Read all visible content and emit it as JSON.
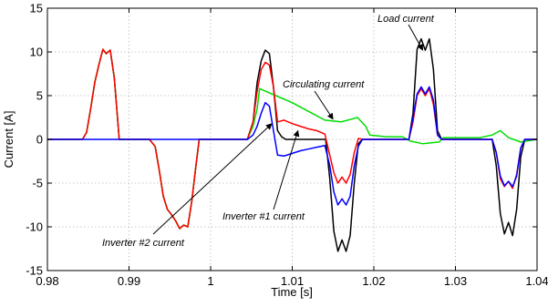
{
  "chart_data": {
    "type": "line",
    "title": "",
    "xlabel": "Time [s]",
    "ylabel": "Current [A]",
    "xlim": [
      0.98,
      1.04
    ],
    "ylim": [
      -15,
      15
    ],
    "grid": true,
    "x_ticks": [
      0.98,
      0.99,
      1.0,
      1.01,
      1.02,
      1.03,
      1.04
    ],
    "x_tick_labels": [
      "0.98",
      "0.99",
      "1",
      "1.01",
      "1.02",
      "1.03",
      "1.04"
    ],
    "y_ticks": [
      -15,
      -10,
      -5,
      0,
      5,
      10,
      15
    ],
    "y_tick_labels": [
      "-15",
      "-10",
      "-5",
      "0",
      "5",
      "10",
      "15"
    ],
    "series": [
      {
        "name": "Load current",
        "color": "#000000",
        "x": [
          0.98,
          0.9843,
          0.9848,
          0.9853,
          0.9858,
          0.9863,
          0.9868,
          0.9872,
          0.9877,
          0.9882,
          0.9888,
          0.9892,
          0.9925,
          0.9932,
          0.9937,
          0.9942,
          0.9947,
          0.9952,
          0.9957,
          0.9962,
          0.9967,
          0.9972,
          0.9977,
          0.9982,
          0.9986,
          1.0045,
          1.0052,
          1.0057,
          1.0062,
          1.0067,
          1.0072,
          1.0077,
          1.0082,
          1.0087,
          1.0092,
          1.0141,
          1.0146,
          1.0151,
          1.0156,
          1.0161,
          1.0166,
          1.0171,
          1.0176,
          1.0181,
          1.0186,
          1.0243,
          1.0248,
          1.0253,
          1.0258,
          1.0263,
          1.0268,
          1.0273,
          1.0278,
          1.0283,
          1.0345,
          1.035,
          1.0355,
          1.036,
          1.0365,
          1.037,
          1.0375,
          1.038,
          1.0385,
          1.04
        ],
        "y": [
          0,
          0,
          0.8,
          3.5,
          6.5,
          8.5,
          10.3,
          9.8,
          10.2,
          7.0,
          0,
          0,
          0,
          -0.8,
          -3.5,
          -6.5,
          -8.0,
          -8.6,
          -9.3,
          -10.2,
          -9.8,
          -10.0,
          -7.0,
          -3.0,
          0,
          0,
          2.0,
          6.5,
          9.0,
          10.2,
          9.8,
          6.0,
          1.0,
          0.3,
          0,
          0,
          -4.5,
          -10.5,
          -12.8,
          -11.5,
          -12.8,
          -11.0,
          -5.0,
          -0.5,
          0,
          0,
          3.0,
          10.3,
          11.5,
          10.2,
          11.5,
          8.0,
          1.0,
          0,
          0,
          -3.0,
          -8.5,
          -10.8,
          -9.5,
          -11.0,
          -8.0,
          -2.0,
          0,
          0
        ]
      },
      {
        "name": "Inverter #1 current",
        "color": "#ff0000",
        "x": [
          0.98,
          0.9843,
          0.9848,
          0.9853,
          0.9858,
          0.9863,
          0.9868,
          0.9872,
          0.9877,
          0.9882,
          0.9888,
          0.9892,
          0.9925,
          0.9932,
          0.9937,
          0.9942,
          0.9947,
          0.9952,
          0.9957,
          0.9962,
          0.9967,
          0.9972,
          0.9977,
          0.9982,
          0.9986,
          1.0045,
          1.0052,
          1.0057,
          1.0062,
          1.0067,
          1.0072,
          1.0077,
          1.0082,
          1.009,
          1.01,
          1.011,
          1.012,
          1.013,
          1.014,
          1.0146,
          1.0151,
          1.0156,
          1.0161,
          1.0166,
          1.0171,
          1.0176,
          1.0181,
          1.0186,
          1.02,
          1.0243,
          1.0248,
          1.0253,
          1.0258,
          1.0263,
          1.0268,
          1.0273,
          1.0278,
          1.0283,
          1.0345,
          1.035,
          1.0355,
          1.036,
          1.0365,
          1.037,
          1.0375,
          1.038,
          1.0385,
          1.04
        ],
        "y": [
          0,
          0,
          0.8,
          3.5,
          6.5,
          8.5,
          10.3,
          9.8,
          10.2,
          7.0,
          0,
          0,
          0,
          -0.8,
          -3.5,
          -6.5,
          -8.0,
          -8.6,
          -9.3,
          -10.2,
          -9.8,
          -10.0,
          -7.0,
          -3.0,
          0,
          0,
          2.0,
          5.5,
          8.0,
          8.8,
          8.5,
          6.0,
          2.0,
          2.2,
          1.8,
          1.5,
          1.2,
          1.0,
          0.6,
          -1.8,
          -3.8,
          -5.0,
          -4.3,
          -5.0,
          -4.0,
          -1.5,
          0.1,
          0,
          0,
          0,
          2.0,
          5.0,
          5.8,
          5.0,
          5.8,
          4.0,
          0.5,
          0,
          0,
          -1.5,
          -4.5,
          -5.4,
          -4.8,
          -5.6,
          -4.0,
          -1.0,
          0,
          0
        ]
      },
      {
        "name": "Inverter #2 current",
        "color": "#0000ff",
        "x": [
          0.98,
          1.0045,
          1.0052,
          1.0057,
          1.0062,
          1.0067,
          1.0072,
          1.0077,
          1.0082,
          1.009,
          1.01,
          1.011,
          1.012,
          1.013,
          1.014,
          1.0146,
          1.0151,
          1.0156,
          1.0161,
          1.0166,
          1.0171,
          1.0176,
          1.0181,
          1.0186,
          1.02,
          1.0243,
          1.0248,
          1.0253,
          1.0258,
          1.0263,
          1.0268,
          1.0273,
          1.0278,
          1.0283,
          1.0345,
          1.035,
          1.0355,
          1.036,
          1.0365,
          1.037,
          1.0375,
          1.038,
          1.0385,
          1.04
        ],
        "y": [
          0,
          0,
          0.5,
          1.5,
          3.0,
          4.2,
          3.8,
          1.0,
          -1.8,
          -1.9,
          -1.6,
          -1.3,
          -1.1,
          -0.9,
          -0.7,
          -3.0,
          -6.0,
          -7.5,
          -6.8,
          -7.5,
          -6.5,
          -3.0,
          -0.8,
          0,
          0,
          0,
          2.5,
          5.2,
          6.0,
          5.2,
          6.0,
          4.5,
          0.5,
          0,
          0,
          -1.5,
          -4.2,
          -5.3,
          -4.8,
          -5.4,
          -4.2,
          -1.0,
          0,
          0
        ]
      },
      {
        "name": "Circulating current",
        "color": "#00dd00",
        "x": [
          0.98,
          0.9843,
          0.9848,
          0.9853,
          0.9858,
          0.9863,
          0.9868,
          0.9872,
          0.9877,
          0.9882,
          0.9888,
          0.9892,
          0.9925,
          0.9932,
          0.9937,
          0.9942,
          0.9947,
          0.9952,
          0.9957,
          0.9962,
          0.9967,
          0.9972,
          0.9977,
          0.9982,
          0.9986,
          1.0045,
          1.0052,
          1.0057,
          1.006,
          1.008,
          1.01,
          1.012,
          1.014,
          1.016,
          1.018,
          1.019,
          1.0195,
          1.0215,
          1.0235,
          1.0245,
          1.026,
          1.028,
          1.0285,
          1.03,
          1.033,
          1.0345,
          1.0355,
          1.0365,
          1.038,
          1.04
        ],
        "y": [
          0,
          0,
          0.8,
          3.5,
          6.5,
          8.5,
          10.3,
          9.8,
          10.2,
          7.0,
          0,
          0,
          0,
          -0.8,
          -3.5,
          -6.5,
          -8.0,
          -8.6,
          -9.3,
          -10.2,
          -9.8,
          -10.0,
          -7.0,
          -3.0,
          0,
          0,
          1.5,
          3.5,
          5.8,
          5.0,
          4.2,
          3.2,
          2.2,
          2.0,
          2.5,
          1.5,
          0.5,
          0.3,
          0.3,
          -0.2,
          -0.5,
          -0.3,
          0.2,
          0.2,
          0.2,
          0.5,
          1.0,
          0.2,
          -0.3,
          0
        ]
      }
    ],
    "annotations": [
      {
        "text": "Load current",
        "at": [
          1.026,
          10.2
        ]
      },
      {
        "text": "Circulating current",
        "at": [
          1.015,
          2.3
        ]
      },
      {
        "text": "Inverter #1 current",
        "at": [
          1.0107,
          1.0
        ]
      },
      {
        "text": "Inverter #2 current",
        "at": [
          1.0075,
          1.8
        ]
      }
    ]
  }
}
